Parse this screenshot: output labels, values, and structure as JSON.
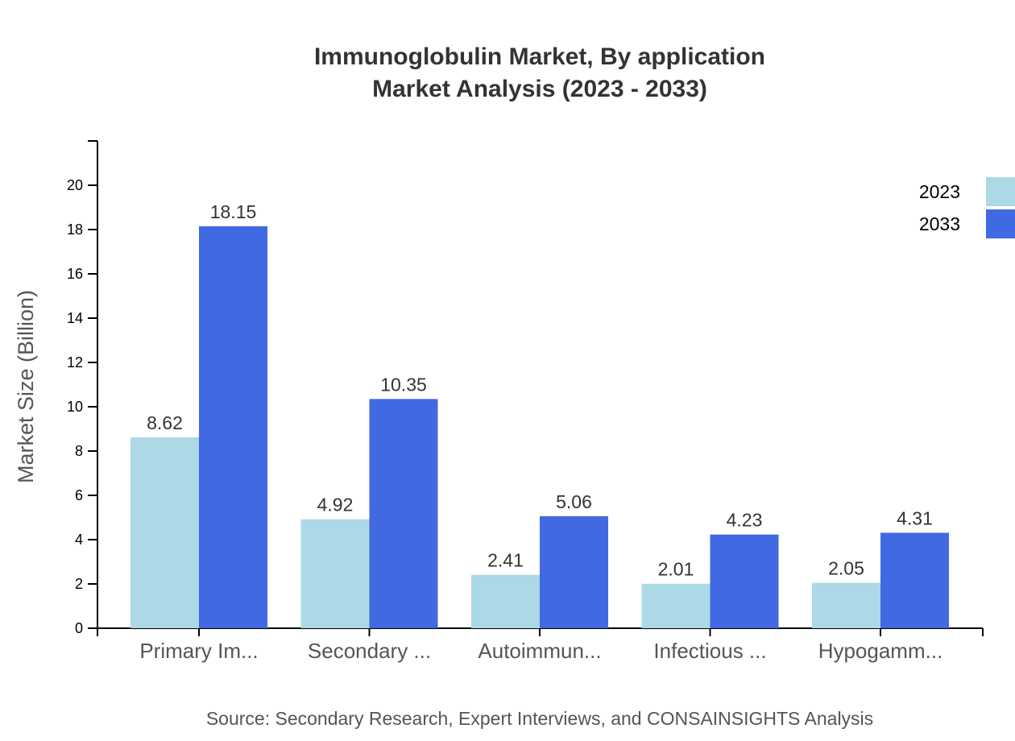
{
  "chart_data": {
    "type": "bar",
    "title": "Immunoglobulin Market, By application",
    "subtitle": "Market Analysis (2023 - 2033)",
    "ylabel": "Market Size (Billion)",
    "xlabel": "",
    "ylim": [
      0,
      22
    ],
    "yticks": [
      0,
      2,
      4,
      6,
      8,
      10,
      12,
      14,
      16,
      18,
      20
    ],
    "categories": [
      "Primary Im...",
      "Secondary ...",
      "Autoimmun...",
      "Infectious ...",
      "Hypogamm..."
    ],
    "series": [
      {
        "name": "2023",
        "color": "#add8e6",
        "values": [
          8.62,
          4.92,
          2.41,
          2.01,
          2.05
        ]
      },
      {
        "name": "2033",
        "color": "#4169e1",
        "values": [
          18.15,
          10.35,
          5.06,
          4.23,
          4.31
        ]
      }
    ],
    "legend_placement": "top-right",
    "grid": false,
    "source": "Source: Secondary Research, Expert Interviews, and CONSAINSIGHTS Analysis"
  }
}
